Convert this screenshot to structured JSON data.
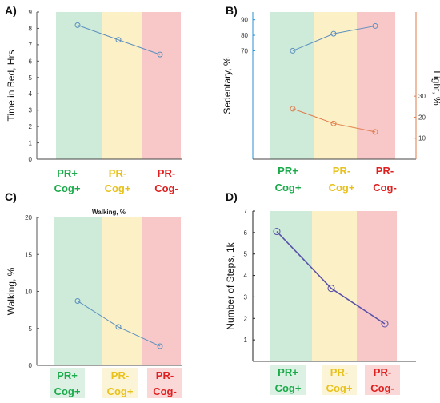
{
  "colors": {
    "band_green": "#cdebd8",
    "band_yellow": "#fbf0c6",
    "band_red": "#f8c8c8",
    "label_green": "#1aaa4a",
    "label_yellow": "#e8c21a",
    "label_red": "#e02020",
    "line_blue": "#5b8fbf",
    "line_orange": "#e07a4a",
    "line_purple": "#5a52a8",
    "axis_blue": "#2a8fd0",
    "axis_orange": "#e07a4a"
  },
  "categories": [
    {
      "top": "PR+",
      "bottom": "Cog+"
    },
    {
      "top": "PR-",
      "bottom": "Cog+"
    },
    {
      "top": "PR-",
      "bottom": "Cog-"
    }
  ],
  "chart_data": [
    {
      "panel": "A)",
      "type": "line",
      "ylabel": "Time in Bed, Hrs",
      "ylim": [
        0,
        9
      ],
      "yticks": [
        "0",
        "1",
        "2",
        "3",
        "4",
        "5",
        "6",
        "7",
        "8",
        "9"
      ],
      "series": [
        {
          "values": [
            8.2,
            7.3,
            6.4
          ]
        }
      ]
    },
    {
      "panel": "B)",
      "type": "line",
      "ylabel": "Sedentary, %",
      "ylabel_right": "Light, %",
      "ylim": [
        0,
        95
      ],
      "yticks": [
        "70",
        "80",
        "90"
      ],
      "ylim_right": [
        0,
        70
      ],
      "yticks_right": [
        "10",
        "20",
        "30"
      ],
      "series": [
        {
          "axis": "left",
          "values": [
            70,
            81,
            86
          ]
        },
        {
          "axis": "right",
          "values": [
            24,
            17,
            13
          ]
        }
      ]
    },
    {
      "panel": "C)",
      "type": "line",
      "title": "Walking, %",
      "ylabel": "Walking, %",
      "ylim": [
        0,
        20
      ],
      "yticks": [
        "0",
        "5",
        "10",
        "15",
        "20"
      ],
      "series": [
        {
          "values": [
            8.7,
            5.2,
            2.6
          ]
        }
      ]
    },
    {
      "panel": "D)",
      "type": "line",
      "ylabel": "Number of Steps, 1k",
      "ylim": [
        0,
        7
      ],
      "yticks": [
        "1",
        "2",
        "3",
        "4",
        "5",
        "6",
        "7"
      ],
      "series": [
        {
          "values": [
            6.05,
            3.4,
            1.75
          ]
        }
      ]
    }
  ]
}
